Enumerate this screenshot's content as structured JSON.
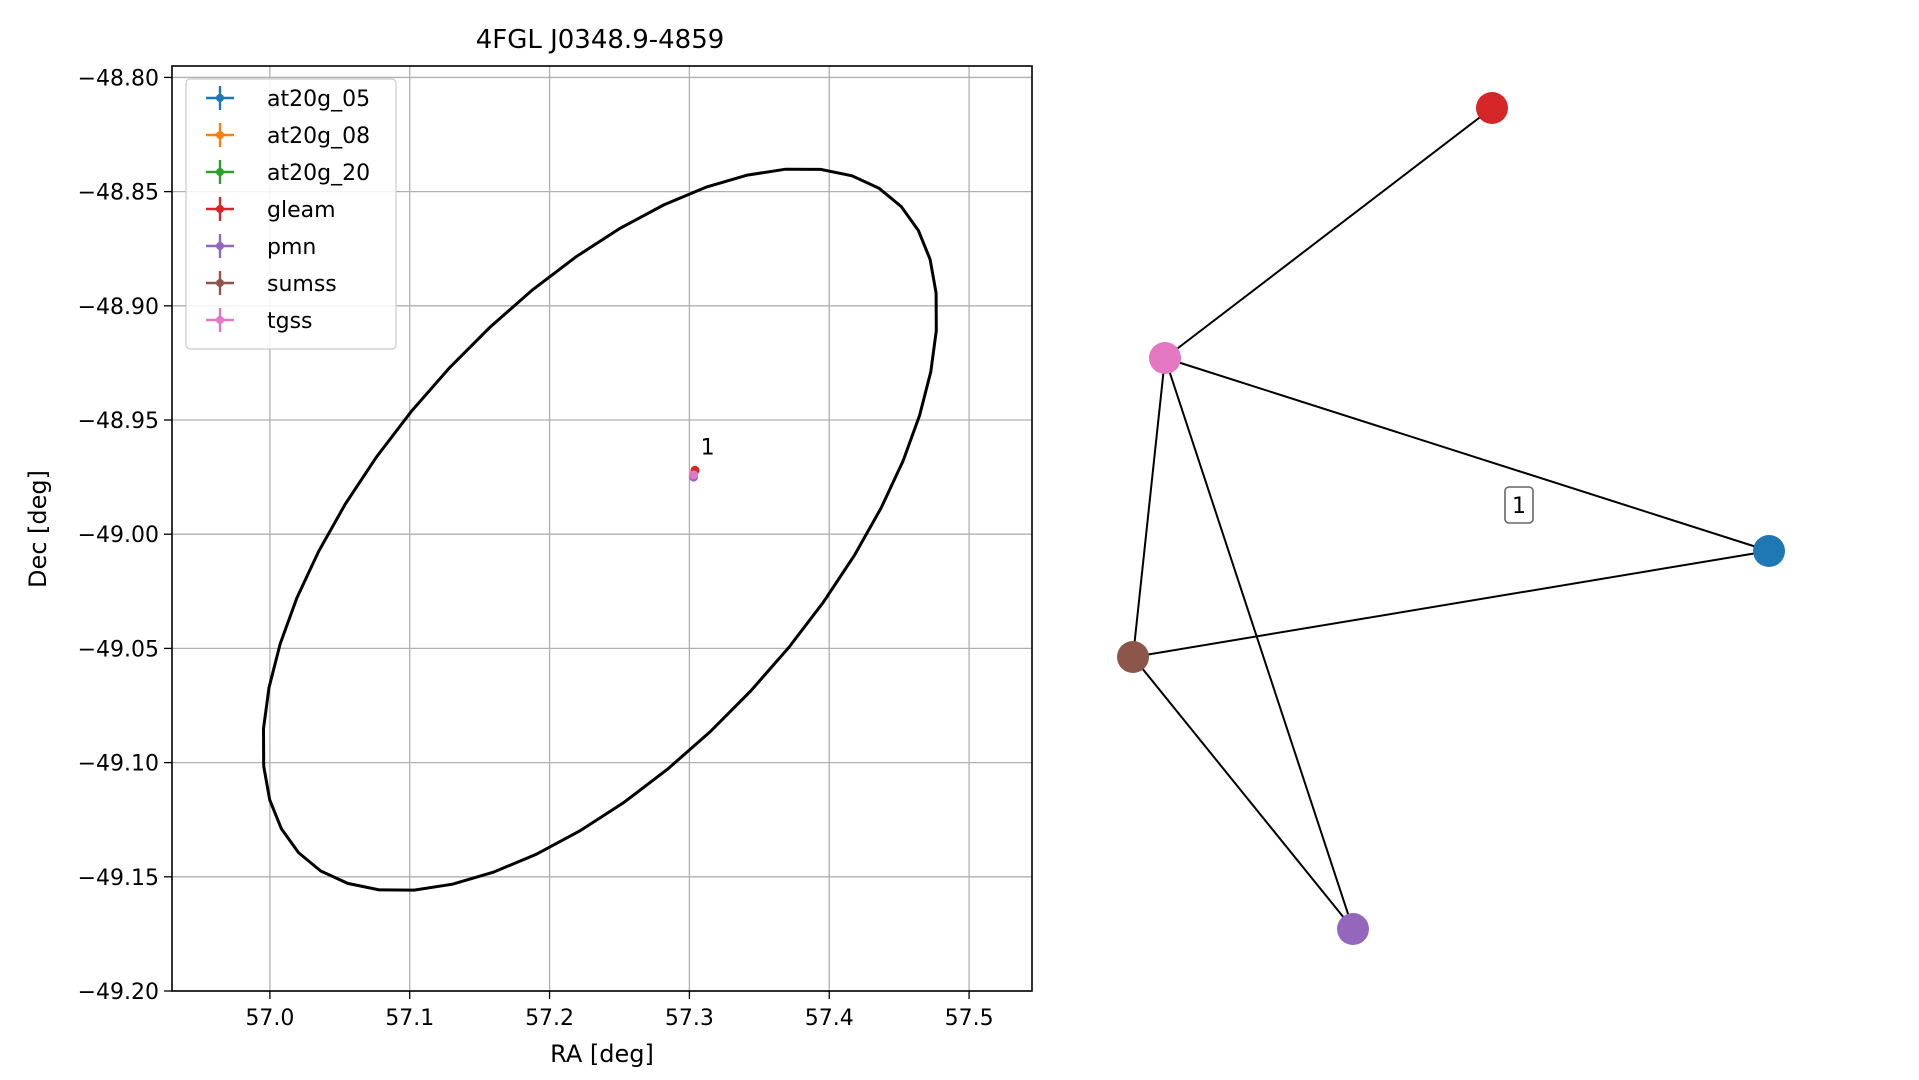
{
  "chart_data": [
    {
      "type": "scatter",
      "title": "4FGL J0348.9-4859",
      "xlabel": "RA [deg]",
      "ylabel": "Dec [deg]",
      "xlim": [
        56.93,
        57.545
      ],
      "ylim": [
        -49.2,
        -48.795
      ],
      "xticks": [
        57.0,
        57.1,
        57.2,
        57.3,
        57.4,
        57.5
      ],
      "xtick_labels": [
        "57.0",
        "57.1",
        "57.2",
        "57.3",
        "57.4",
        "57.5"
      ],
      "yticks": [
        -48.8,
        -48.85,
        -48.9,
        -48.95,
        -49.0,
        -49.05,
        -49.1,
        -49.15,
        -49.2
      ],
      "ytick_labels": [
        "−48.80",
        "−48.85",
        "−48.90",
        "−48.95",
        "−49.00",
        "−49.05",
        "−49.10",
        "−49.15",
        "−49.20"
      ],
      "grid": true,
      "legend_position": "upper-left",
      "series": [
        {
          "name": "at20g_05",
          "color": "#1f77b4",
          "points": []
        },
        {
          "name": "at20g_08",
          "color": "#ff7f0e",
          "points": []
        },
        {
          "name": "at20g_20",
          "color": "#2ca02c",
          "points": []
        },
        {
          "name": "gleam",
          "color": "#d62728",
          "points": [
            [
              57.304,
              -48.972
            ]
          ]
        },
        {
          "name": "pmn",
          "color": "#9467bd",
          "points": [
            [
              57.303,
              -48.975
            ]
          ]
        },
        {
          "name": "sumss",
          "color": "#8c564b",
          "points": []
        },
        {
          "name": "tgss",
          "color": "#e377c2",
          "points": [
            [
              57.303,
              -48.974
            ]
          ]
        }
      ],
      "annotations": [
        {
          "text": "1",
          "x": 57.308,
          "y": -48.965
        }
      ],
      "ellipse": {
        "center": [
          57.236,
          -48.998
        ],
        "semi_axes_deg": [
          0.2,
          0.1
        ],
        "rotation_deg": 45,
        "color": "#000000"
      }
    },
    {
      "type": "network",
      "nodes": [
        {
          "id": "red",
          "color": "#d62728"
        },
        {
          "id": "pink",
          "color": "#e377c2"
        },
        {
          "id": "blue",
          "color": "#1f77b4"
        },
        {
          "id": "brown",
          "color": "#8c564b"
        },
        {
          "id": "purple",
          "color": "#9467bd"
        }
      ],
      "edges": [
        [
          "pink",
          "red"
        ],
        [
          "pink",
          "blue"
        ],
        [
          "pink",
          "brown"
        ],
        [
          "pink",
          "purple"
        ],
        [
          "brown",
          "blue"
        ],
        [
          "brown",
          "purple"
        ]
      ],
      "labels": [
        {
          "text": "1"
        }
      ]
    }
  ]
}
